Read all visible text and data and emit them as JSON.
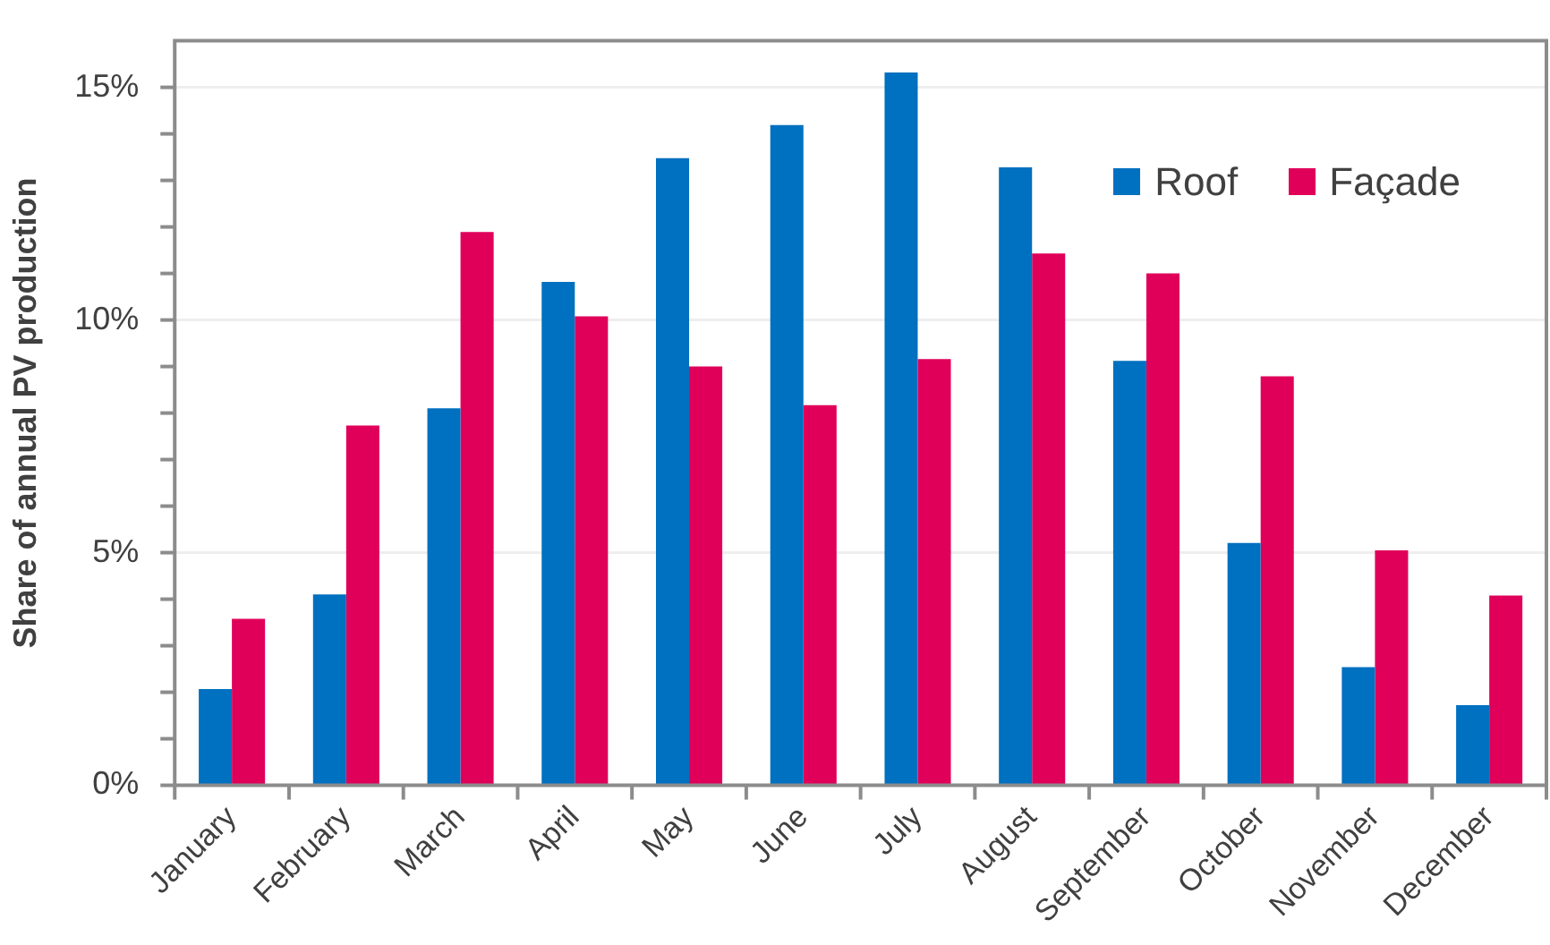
{
  "chart_data": {
    "type": "bar",
    "ylabel": "Share of annual PV production",
    "categories": [
      "January",
      "February",
      "March",
      "April",
      "May",
      "June",
      "July",
      "August",
      "September",
      "October",
      "November",
      "December"
    ],
    "series": [
      {
        "name": "Roof",
        "color": "#0070c0",
        "values": [
          2.07,
          4.1,
          8.1,
          10.82,
          13.48,
          14.19,
          15.32,
          13.28,
          9.12,
          5.21,
          2.54,
          1.72
        ]
      },
      {
        "name": "Façade",
        "color": "#e0005a",
        "values": [
          3.58,
          7.73,
          11.89,
          10.08,
          9.0,
          8.17,
          9.16,
          11.43,
          11.0,
          8.79,
          5.05,
          4.08
        ]
      }
    ],
    "ylim": [
      0,
      16
    ],
    "yticks": [
      {
        "value": 0,
        "label": "0%"
      },
      {
        "value": 1,
        "label": null
      },
      {
        "value": 2,
        "label": null
      },
      {
        "value": 3,
        "label": null
      },
      {
        "value": 4,
        "label": null
      },
      {
        "value": 5,
        "label": "5%"
      },
      {
        "value": 6,
        "label": null
      },
      {
        "value": 7,
        "label": null
      },
      {
        "value": 8,
        "label": null
      },
      {
        "value": 9,
        "label": null
      },
      {
        "value": 10,
        "label": "10%"
      },
      {
        "value": 11,
        "label": null
      },
      {
        "value": 12,
        "label": null
      },
      {
        "value": 13,
        "label": null
      },
      {
        "value": 14,
        "label": null
      },
      {
        "value": 15,
        "label": "15%"
      }
    ],
    "grid": "y",
    "legend": "top right"
  }
}
